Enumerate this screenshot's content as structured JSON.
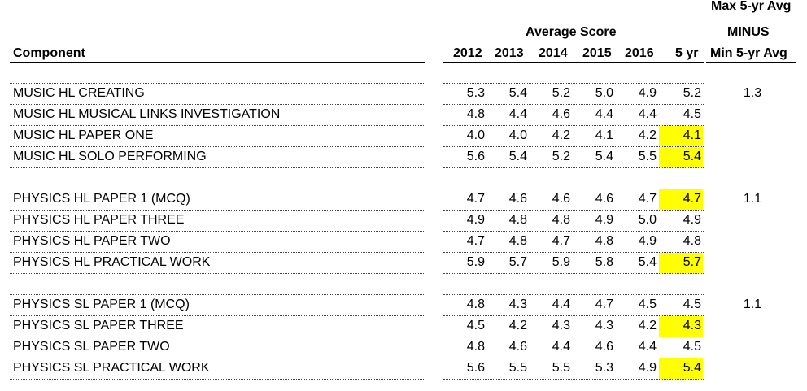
{
  "header": {
    "component": "Component",
    "average_score": "Average Score",
    "years": [
      "2012",
      "2013",
      "2014",
      "2015",
      "2016",
      "5 yr"
    ],
    "maxmin_line1": "Max 5-yr Avg",
    "maxmin_line2": "MINUS",
    "maxmin_line3": "Min 5-yr Avg"
  },
  "highlight_color": "#ffff00",
  "groups": [
    {
      "maxmin": "1.3",
      "rows": [
        {
          "component": "MUSIC HL CREATING",
          "values": [
            "5.3",
            "5.4",
            "5.2",
            "5.0",
            "4.9"
          ],
          "avg": "5.2",
          "highlight": false
        },
        {
          "component": "MUSIC HL MUSICAL LINKS INVESTIGATION",
          "values": [
            "4.8",
            "4.4",
            "4.6",
            "4.4",
            "4.4"
          ],
          "avg": "4.5",
          "highlight": false
        },
        {
          "component": "MUSIC HL PAPER ONE",
          "values": [
            "4.0",
            "4.0",
            "4.2",
            "4.1",
            "4.2"
          ],
          "avg": "4.1",
          "highlight": true
        },
        {
          "component": "MUSIC HL SOLO PERFORMING",
          "values": [
            "5.6",
            "5.4",
            "5.2",
            "5.4",
            "5.5"
          ],
          "avg": "5.4",
          "highlight": true
        }
      ]
    },
    {
      "maxmin": "1.1",
      "rows": [
        {
          "component": "PHYSICS HL PAPER 1 (MCQ)",
          "values": [
            "4.7",
            "4.6",
            "4.6",
            "4.6",
            "4.7"
          ],
          "avg": "4.7",
          "highlight": true
        },
        {
          "component": "PHYSICS HL PAPER THREE",
          "values": [
            "4.9",
            "4.8",
            "4.8",
            "4.9",
            "5.0"
          ],
          "avg": "4.9",
          "highlight": false
        },
        {
          "component": "PHYSICS HL PAPER TWO",
          "values": [
            "4.7",
            "4.8",
            "4.7",
            "4.8",
            "4.9"
          ],
          "avg": "4.8",
          "highlight": false
        },
        {
          "component": "PHYSICS HL PRACTICAL WORK",
          "values": [
            "5.9",
            "5.7",
            "5.9",
            "5.8",
            "5.4"
          ],
          "avg": "5.7",
          "highlight": true
        }
      ]
    },
    {
      "maxmin": "1.1",
      "rows": [
        {
          "component": "PHYSICS SL PAPER 1 (MCQ)",
          "values": [
            "4.8",
            "4.3",
            "4.4",
            "4.7",
            "4.5"
          ],
          "avg": "4.5",
          "highlight": false
        },
        {
          "component": "PHYSICS SL PAPER THREE",
          "values": [
            "4.5",
            "4.2",
            "4.3",
            "4.3",
            "4.2"
          ],
          "avg": "4.3",
          "highlight": true
        },
        {
          "component": "PHYSICS SL PAPER TWO",
          "values": [
            "4.8",
            "4.6",
            "4.4",
            "4.6",
            "4.4"
          ],
          "avg": "4.5",
          "highlight": false
        },
        {
          "component": "PHYSICS SL PRACTICAL WORK",
          "values": [
            "5.6",
            "5.5",
            "5.5",
            "5.3",
            "4.9"
          ],
          "avg": "5.4",
          "highlight": true
        }
      ]
    }
  ]
}
